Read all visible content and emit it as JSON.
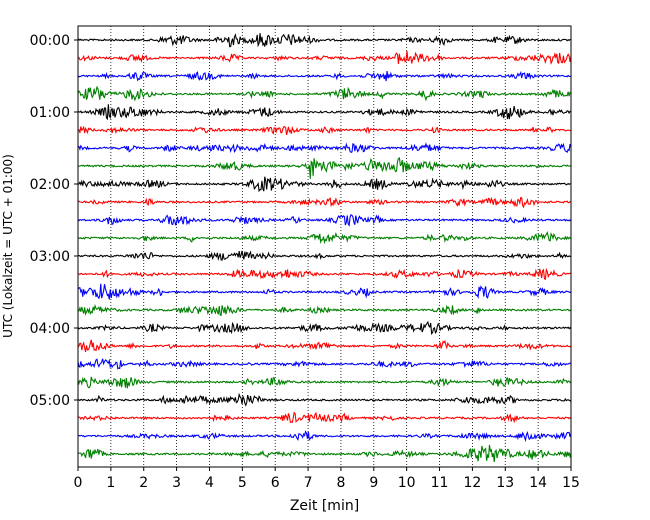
{
  "chart_data": {
    "type": "line",
    "title": "",
    "xlabel": "Zeit  [min]",
    "ylabel": "UTC (Lokalzeit = UTC + 01:00)",
    "xlim": [
      0,
      15
    ],
    "x_ticks": [
      "0",
      "1",
      "2",
      "3",
      "4",
      "5",
      "6",
      "7",
      "8",
      "9",
      "10",
      "11",
      "12",
      "13",
      "14",
      "15"
    ],
    "y_tick_labels": [
      "00:00",
      "01:00",
      "02:00",
      "03:00",
      "04:00",
      "05:00"
    ],
    "y_tick_rows": [
      0,
      4,
      8,
      12,
      16,
      20
    ],
    "row_count": 24,
    "row_minutes": 15,
    "x_grid": "dotted",
    "colors": [
      "#000000",
      "#ff0000",
      "#0000ff",
      "#008000"
    ],
    "rows": [
      {
        "start": "00:00",
        "color": "#000000"
      },
      {
        "start": "00:15",
        "color": "#ff0000"
      },
      {
        "start": "00:30",
        "color": "#0000ff"
      },
      {
        "start": "00:45",
        "color": "#008000"
      },
      {
        "start": "01:00",
        "color": "#000000"
      },
      {
        "start": "01:15",
        "color": "#ff0000"
      },
      {
        "start": "01:30",
        "color": "#0000ff"
      },
      {
        "start": "01:45",
        "color": "#008000",
        "events": [
          {
            "t": 7.1,
            "amp": 1.0
          }
        ]
      },
      {
        "start": "02:00",
        "color": "#000000"
      },
      {
        "start": "02:15",
        "color": "#ff0000"
      },
      {
        "start": "02:30",
        "color": "#0000ff"
      },
      {
        "start": "02:45",
        "color": "#008000"
      },
      {
        "start": "03:00",
        "color": "#000000"
      },
      {
        "start": "03:15",
        "color": "#ff0000"
      },
      {
        "start": "03:30",
        "color": "#0000ff"
      },
      {
        "start": "03:45",
        "color": "#008000"
      },
      {
        "start": "04:00",
        "color": "#000000"
      },
      {
        "start": "04:15",
        "color": "#ff0000"
      },
      {
        "start": "04:30",
        "color": "#0000ff"
      },
      {
        "start": "04:45",
        "color": "#008000"
      },
      {
        "start": "05:00",
        "color": "#000000"
      },
      {
        "start": "05:15",
        "color": "#ff0000"
      },
      {
        "start": "05:30",
        "color": "#0000ff"
      },
      {
        "start": "05:45",
        "color": "#008000"
      }
    ]
  }
}
